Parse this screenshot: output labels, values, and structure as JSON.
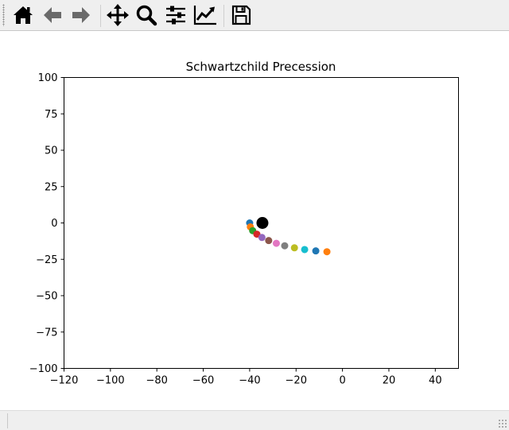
{
  "toolbar": {
    "tools": [
      {
        "id": "home",
        "icon": "home-icon"
      },
      {
        "id": "back",
        "icon": "arrow-left-icon"
      },
      {
        "id": "forward",
        "icon": "arrow-right-icon"
      },
      {
        "id": "pan",
        "icon": "move-icon"
      },
      {
        "id": "zoom",
        "icon": "search-icon"
      },
      {
        "id": "subplots",
        "icon": "sliders-icon"
      },
      {
        "id": "customize",
        "icon": "line-chart-icon"
      },
      {
        "id": "save",
        "icon": "floppy-disk-icon"
      }
    ]
  },
  "statusbar": {
    "message": ""
  },
  "chart_data": {
    "type": "scatter",
    "title": "Schwartzchild Precession",
    "xlabel": "",
    "ylabel": "",
    "xlim": [
      -120,
      50
    ],
    "ylim": [
      -100,
      100
    ],
    "xticks": [
      -120,
      -100,
      -80,
      -60,
      -40,
      -20,
      0,
      20,
      40
    ],
    "yticks": [
      100,
      75,
      50,
      25,
      0,
      -25,
      -50,
      -75,
      -100
    ],
    "xtick_labels": [
      "−120",
      "−100",
      "−80",
      "−60",
      "−40",
      "−20",
      "0",
      "20",
      "40"
    ],
    "ytick_labels": [
      "100",
      "75",
      "50",
      "25",
      "0",
      "−25",
      "−50",
      "−75",
      "−100"
    ],
    "grid": false,
    "colors": [
      "#1f77b4",
      "#ff7f0e",
      "#2ca02c",
      "#d62728",
      "#9467bd",
      "#8c564b",
      "#e377c2",
      "#7f7f7f",
      "#bcbd22",
      "#17becf"
    ],
    "points": [
      {
        "x": -40.0,
        "y": 0.0
      },
      {
        "x": -39.7,
        "y": -2.7
      },
      {
        "x": -38.7,
        "y": -5.3
      },
      {
        "x": -36.9,
        "y": -7.7
      },
      {
        "x": -34.7,
        "y": -10.0
      },
      {
        "x": -31.8,
        "y": -12.1
      },
      {
        "x": -28.5,
        "y": -14.0
      },
      {
        "x": -24.9,
        "y": -15.7
      },
      {
        "x": -20.7,
        "y": -17.1
      },
      {
        "x": -16.3,
        "y": -18.3
      },
      {
        "x": -11.5,
        "y": -19.2
      },
      {
        "x": -6.7,
        "y": -19.8
      }
    ],
    "central_mass": {
      "x": -34.5,
      "y": 0.0,
      "color": "#000000"
    }
  }
}
